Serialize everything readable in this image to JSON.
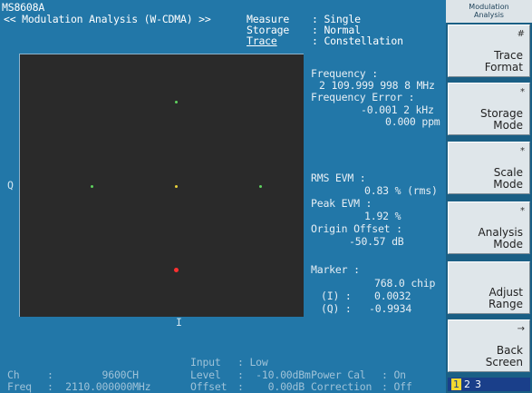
{
  "instrument": {
    "model": "MS8608A",
    "mode_title": "<< Modulation Analysis (W-CDMA) >>"
  },
  "status": {
    "measure_label": "Measure",
    "measure_value": ": Single",
    "storage_label": "Storage",
    "storage_value": ": Normal",
    "trace_label": "Trace",
    "trace_value": ": Constellation"
  },
  "plot": {
    "y_axis_label": "Q",
    "x_axis_label": "I"
  },
  "results": {
    "frequency_label": "Frequency :",
    "frequency_value": "2 109.999 998 8 MHz",
    "freq_error_label": "Frequency Error :",
    "freq_error_khz": "-0.001 2 kHz",
    "freq_error_ppm": "0.000 ppm",
    "rms_evm_label": "RMS EVM :",
    "rms_evm_value": "0.83 % (rms)",
    "peak_evm_label": "Peak EVM :",
    "peak_evm_value": "1.92 %",
    "origin_offset_label": "Origin Offset :",
    "origin_offset_value": "-50.57 dB"
  },
  "marker": {
    "label": "Marker :",
    "chip": "768.0 chip",
    "i_label": "(I) :",
    "i_value": "0.0032",
    "q_label": "(Q) :",
    "q_value": "-0.9934"
  },
  "bottom": {
    "ch_label": "Ch",
    "ch_value": ":        9600CH",
    "freq_label": "Freq",
    "freq_value": ":  2110.000000MHz",
    "input_label": "Input",
    "input_value": ": Low",
    "level_label": "Level",
    "level_value": ":  -10.00dBm",
    "offset_label": "Offset",
    "offset_value": ":    0.00dB",
    "power_cal_label": "Power Cal",
    "power_cal_value": ": On",
    "correction_label": "Correction",
    "correction_value": ": Off"
  },
  "softkeys": {
    "title_line1": "Modulation",
    "title_line2": "Analysis",
    "keys": [
      {
        "mark": "#",
        "label": "Trace\nFormat"
      },
      {
        "mark": "*",
        "label": "Storage\nMode"
      },
      {
        "mark": "*",
        "label": "Scale\nMode"
      },
      {
        "mark": "*",
        "label": "Analysis\nMode"
      },
      {
        "mark": "",
        "label": "Adjust\nRange"
      },
      {
        "mark": "→",
        "label": "Back\nScreen"
      }
    ],
    "pages": [
      "1",
      "2",
      "3"
    ],
    "active_page": "1"
  },
  "constellation": {
    "points": [
      {
        "i": 0.0,
        "q": 1.0,
        "color": "#5fd35f"
      },
      {
        "i": -1.0,
        "q": 0.0,
        "color": "#5fd35f"
      },
      {
        "i": 1.0,
        "q": 0.0,
        "color": "#5fd35f"
      },
      {
        "i": 0.0,
        "q": 0.0,
        "color": "#e8d23a"
      },
      {
        "i": 0.0032,
        "q": -0.9934,
        "color": "#ff3030",
        "marker": true
      }
    ]
  }
}
